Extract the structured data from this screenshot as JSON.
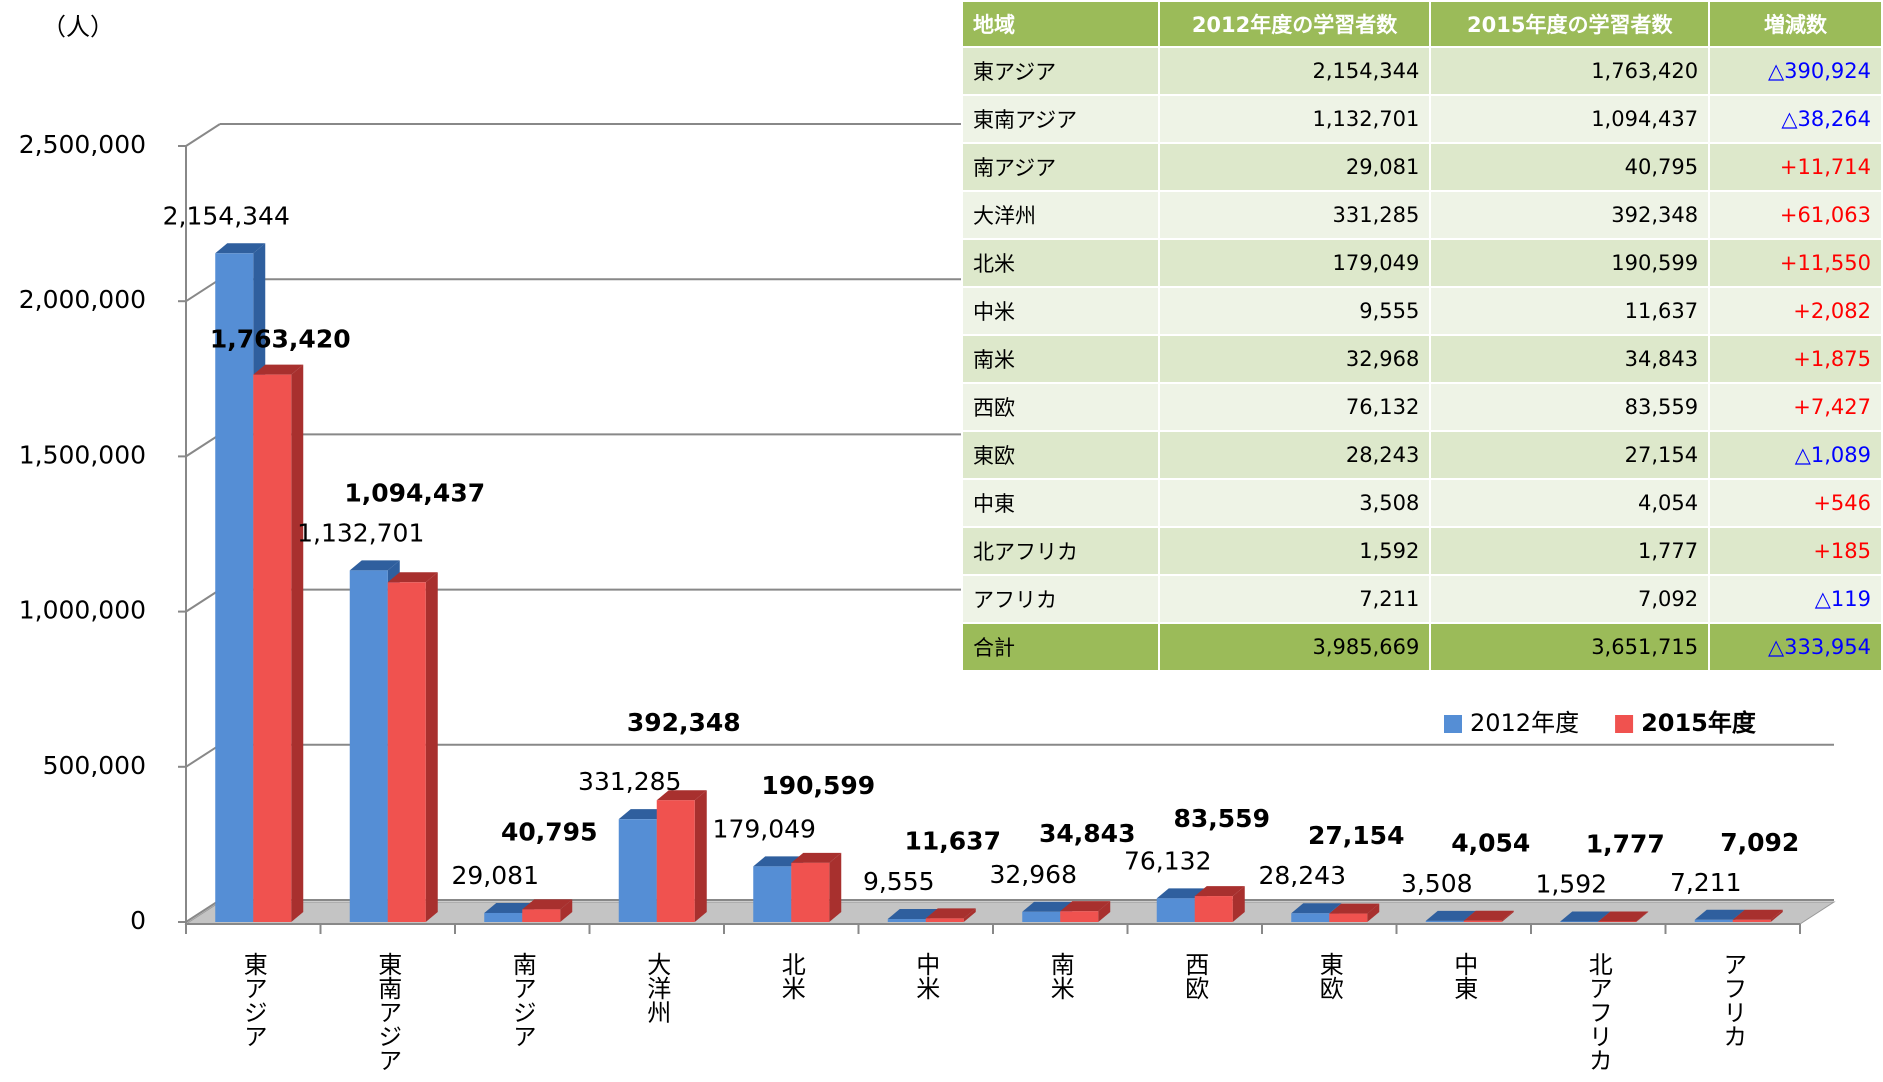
{
  "chart_data": {
    "type": "bar3d",
    "y_label": "（人）",
    "categories": [
      "東アジア",
      "東南アジア",
      "南アジア",
      "大洋州",
      "北米",
      "中米",
      "南米",
      "西欧",
      "東欧",
      "中東",
      "北アフリカ",
      "アフリカ"
    ],
    "series": [
      {
        "name": "2012年度",
        "color": "#558ed5",
        "side": "#2f5f9e",
        "values": [
          2154344,
          1132701,
          29081,
          331285,
          179049,
          9555,
          32968,
          76132,
          28243,
          3508,
          1592,
          7211
        ],
        "value_labels": [
          "2,154,344",
          "1,132,701",
          "29,081",
          "331,285",
          "179,049",
          "9,555",
          "32,968",
          "76,132",
          "28,243",
          "3,508",
          "1,592",
          "7,211"
        ]
      },
      {
        "name": "2015年度",
        "color": "#f0524f",
        "side": "#a8302e",
        "values": [
          1763420,
          1094437,
          40795,
          392348,
          190599,
          11637,
          34843,
          83559,
          27154,
          4054,
          1777,
          7092
        ],
        "value_labels": [
          "1,763,420",
          "1,094,437",
          "40,795",
          "392,348",
          "190,599",
          "11,637",
          "34,843",
          "83,559",
          "27,154",
          "4,054",
          "1,777",
          "7,092"
        ]
      }
    ],
    "ylim": [
      0,
      2500000
    ],
    "yticks": [
      0,
      {
        "value": 500000,
        "label": "500,000"
      },
      {
        "value": 1000000,
        "label": "1,000,000"
      },
      {
        "value": 1500000,
        "label": "1,500,000"
      },
      {
        "value": 2000000,
        "label": "2,000,000"
      },
      {
        "value": 2500000,
        "label": "2,500,000"
      }
    ],
    "grid": true
  },
  "table": {
    "header": [
      "地域",
      "2012年度の学習者数",
      "2015年度の学習者数",
      "増減数"
    ],
    "rows": [
      [
        "東アジア",
        "2,154,344",
        "1,763,420",
        "△390,924"
      ],
      [
        "東南アジア",
        "1,132,701",
        "1,094,437",
        "△38,264"
      ],
      [
        "南アジア",
        "29,081",
        "40,795",
        "+11,714"
      ],
      [
        "大洋州",
        "331,285",
        "392,348",
        "+61,063"
      ],
      [
        "北米",
        "179,049",
        "190,599",
        "+11,550"
      ],
      [
        "中米",
        "9,555",
        "11,637",
        "+2,082"
      ],
      [
        "南米",
        "32,968",
        "34,843",
        "+1,875"
      ],
      [
        "西欧",
        "76,132",
        "83,559",
        "+7,427"
      ],
      [
        "東欧",
        "28,243",
        "27,154",
        "△1,089"
      ],
      [
        "中東",
        "3,508",
        "4,054",
        "+546"
      ],
      [
        "北アフリカ",
        "1,592",
        "1,777",
        "+185"
      ],
      [
        "アフリカ",
        "7,211",
        "7,092",
        "△119"
      ]
    ],
    "total": [
      "合計",
      "3,985,669",
      "3,651,715",
      "△333,954"
    ]
  }
}
